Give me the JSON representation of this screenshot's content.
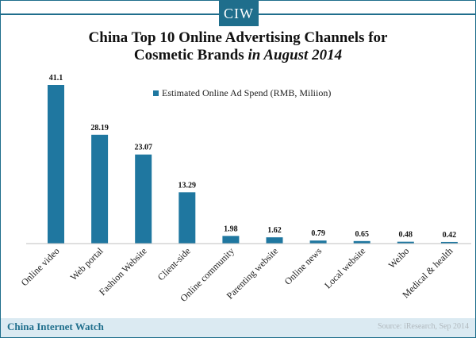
{
  "logo": {
    "text": "CIW"
  },
  "title": {
    "line1": "China Top 10 Online Advertising Channels for",
    "line2_plain": "Cosmetic Brands ",
    "line2_italic": "in August 2014"
  },
  "footer": {
    "brand": "China Internet Watch",
    "source": "Source: iResearch, Sep 2014"
  },
  "colors": {
    "accent": "#1f6e8c",
    "bar": "#1f77a0",
    "band": "#dbeaf2"
  },
  "chart_data": {
    "type": "bar",
    "categories": [
      "Online video",
      "Web portal",
      "Fashion Website",
      "Client-side",
      "Online community",
      "Parenting website",
      "Online news",
      "Local website",
      "Weibo",
      "Medical & health"
    ],
    "series": [
      {
        "name": "Estimated Online Ad Spend (RMB, Miliion)",
        "values": [
          41.1,
          28.19,
          23.07,
          13.29,
          1.98,
          1.62,
          0.79,
          0.65,
          0.48,
          0.42
        ]
      }
    ],
    "data_labels": [
      "41.1",
      "28.19",
      "23.07",
      "13.29",
      "1.98",
      "1.62",
      "0.79",
      "0.65",
      "0.48",
      "0.42"
    ],
    "ylim": [
      0,
      41.1
    ],
    "grid": false,
    "legend_position": "top-right"
  }
}
